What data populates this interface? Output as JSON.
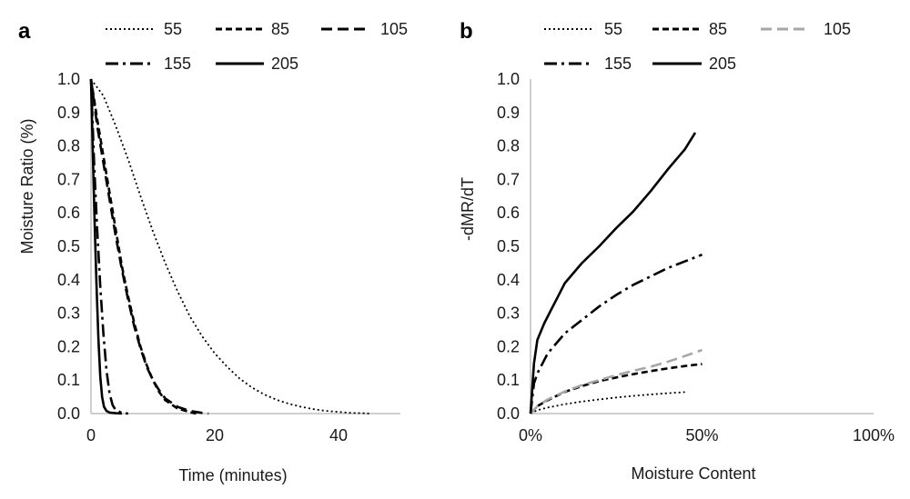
{
  "chart_data": [
    {
      "panel": "a",
      "type": "line",
      "xlabel": "Time  (minutes)",
      "ylabel": "Moisture Ratio (%)",
      "xlim": [
        0,
        50
      ],
      "ylim": [
        0,
        1.0
      ],
      "xticks": [
        0,
        20,
        40
      ],
      "xtick_labels": [
        "0",
        "20",
        "40"
      ],
      "yticks": [
        0.0,
        0.1,
        0.2,
        0.3,
        0.4,
        0.5,
        0.6,
        0.7,
        0.8,
        0.9,
        1.0
      ],
      "ytick_labels": [
        "0.0",
        "0.1",
        "0.2",
        "0.3",
        "0.4",
        "0.5",
        "0.6",
        "0.7",
        "0.8",
        "0.9",
        "1.0"
      ],
      "grid": false,
      "legend_position": "top",
      "series": [
        {
          "name": "55",
          "style": "dotted",
          "color": "#000000",
          "x": [
            0,
            2,
            4,
            6,
            8,
            10,
            12,
            14,
            16,
            18,
            20,
            22,
            24,
            26,
            28,
            30,
            32,
            34,
            36,
            38,
            40,
            42,
            44,
            45
          ],
          "y": [
            1.0,
            0.95,
            0.86,
            0.76,
            0.65,
            0.545,
            0.45,
            0.365,
            0.29,
            0.23,
            0.18,
            0.14,
            0.105,
            0.078,
            0.057,
            0.041,
            0.029,
            0.02,
            0.013,
            0.008,
            0.005,
            0.002,
            0.001,
            0.0
          ]
        },
        {
          "name": "85",
          "style": "short-dash",
          "color": "#000000",
          "x": [
            0,
            1,
            2,
            3,
            4,
            5,
            6,
            7,
            8,
            9,
            10,
            11,
            12,
            14,
            16,
            17
          ],
          "y": [
            1.0,
            0.88,
            0.77,
            0.66,
            0.55,
            0.44,
            0.35,
            0.27,
            0.2,
            0.145,
            0.1,
            0.065,
            0.04,
            0.015,
            0.004,
            0.0
          ]
        },
        {
          "name": "105",
          "style": "long-dash",
          "color": "#000000",
          "x": [
            0,
            1,
            2,
            3,
            4,
            5,
            6,
            7,
            8,
            9,
            10,
            11,
            12,
            14,
            16,
            18,
            19
          ],
          "y": [
            1.0,
            0.86,
            0.75,
            0.64,
            0.53,
            0.43,
            0.34,
            0.26,
            0.195,
            0.14,
            0.1,
            0.07,
            0.045,
            0.02,
            0.008,
            0.002,
            0.0
          ]
        },
        {
          "name": "155",
          "style": "dash-dot",
          "color": "#000000",
          "x": [
            0,
            0.5,
            1,
            1.5,
            2,
            2.5,
            3,
            3.5,
            4,
            5,
            6
          ],
          "y": [
            1.0,
            0.75,
            0.55,
            0.38,
            0.24,
            0.13,
            0.06,
            0.025,
            0.01,
            0.002,
            0.0
          ]
        },
        {
          "name": "205",
          "style": "solid",
          "color": "#000000",
          "x": [
            0,
            0.3,
            0.6,
            0.9,
            1.2,
            1.5,
            1.8,
            2.1,
            2.5,
            3,
            4,
            5
          ],
          "y": [
            1.0,
            0.78,
            0.56,
            0.38,
            0.22,
            0.11,
            0.05,
            0.02,
            0.008,
            0.003,
            0.001,
            0.0
          ]
        }
      ]
    },
    {
      "panel": "b",
      "type": "line",
      "xlabel": "Moisture Content",
      "ylabel": "-dMR/dT",
      "xlim": [
        0,
        1.0
      ],
      "ylim": [
        0,
        1.0
      ],
      "xticks": [
        0,
        0.5,
        1.0
      ],
      "xtick_labels": [
        "0%",
        "50%",
        "100%"
      ],
      "yticks": [
        0.0,
        0.1,
        0.2,
        0.3,
        0.4,
        0.5,
        0.6,
        0.7,
        0.8,
        0.9,
        1.0
      ],
      "ytick_labels": [
        "0.0",
        "0.1",
        "0.2",
        "0.3",
        "0.4",
        "0.5",
        "0.6",
        "0.7",
        "0.8",
        "0.9",
        "1.0"
      ],
      "grid": false,
      "legend_position": "top",
      "series": [
        {
          "name": "55",
          "style": "dotted",
          "color": "#000000",
          "x": [
            0,
            0.02,
            0.05,
            0.1,
            0.15,
            0.2,
            0.25,
            0.3,
            0.35,
            0.4,
            0.45
          ],
          "y": [
            0,
            0.01,
            0.018,
            0.028,
            0.036,
            0.042,
            0.048,
            0.053,
            0.057,
            0.061,
            0.064
          ]
        },
        {
          "name": "85",
          "style": "short-dash",
          "color": "#000000",
          "x": [
            0,
            0.02,
            0.05,
            0.1,
            0.15,
            0.2,
            0.25,
            0.3,
            0.35,
            0.4,
            0.45,
            0.5
          ],
          "y": [
            0,
            0.022,
            0.04,
            0.065,
            0.082,
            0.097,
            0.108,
            0.118,
            0.127,
            0.135,
            0.142,
            0.148
          ]
        },
        {
          "name": "105",
          "style": "long-dash",
          "color": "#a6a6a6",
          "x": [
            0,
            0.02,
            0.05,
            0.1,
            0.15,
            0.2,
            0.25,
            0.3,
            0.35,
            0.4,
            0.45,
            0.5
          ],
          "y": [
            0,
            0.022,
            0.042,
            0.066,
            0.085,
            0.1,
            0.115,
            0.128,
            0.14,
            0.155,
            0.172,
            0.19
          ]
        },
        {
          "name": "155",
          "style": "dash-dot",
          "color": "#000000",
          "x": [
            0,
            0.01,
            0.02,
            0.05,
            0.1,
            0.15,
            0.2,
            0.25,
            0.3,
            0.35,
            0.4,
            0.45,
            0.5
          ],
          "y": [
            0,
            0.09,
            0.12,
            0.18,
            0.24,
            0.28,
            0.32,
            0.355,
            0.385,
            0.41,
            0.435,
            0.455,
            0.475
          ]
        },
        {
          "name": "205",
          "style": "solid",
          "color": "#000000",
          "x": [
            0,
            0.01,
            0.02,
            0.04,
            0.06,
            0.08,
            0.1,
            0.15,
            0.2,
            0.25,
            0.3,
            0.35,
            0.4,
            0.45,
            0.48
          ],
          "y": [
            0,
            0.15,
            0.22,
            0.27,
            0.31,
            0.35,
            0.39,
            0.45,
            0.5,
            0.555,
            0.605,
            0.665,
            0.73,
            0.79,
            0.84
          ]
        }
      ]
    }
  ]
}
